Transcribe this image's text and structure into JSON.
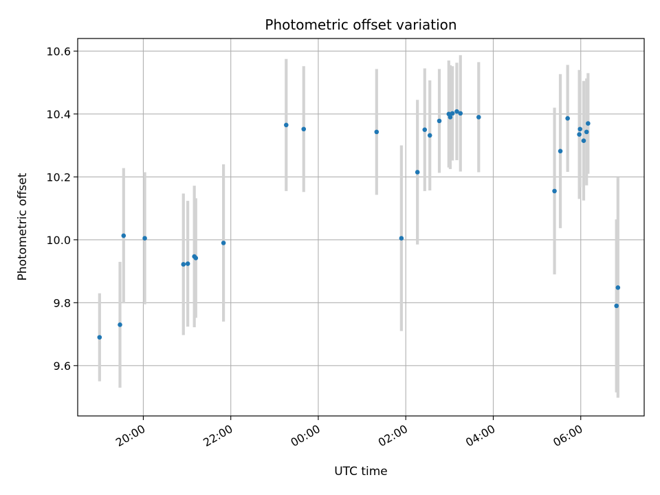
{
  "chart_data": {
    "type": "scatter",
    "title": "Photometric offset variation",
    "xlabel": "UTC time",
    "ylabel": "Photometric offset",
    "x_tick_labels": [
      "20:00",
      "22:00",
      "00:00",
      "02:00",
      "04:00",
      "06:00"
    ],
    "x_ticks_hours": [
      20,
      22,
      24,
      26,
      28,
      30
    ],
    "y_ticks": [
      9.6,
      9.8,
      10.0,
      10.2,
      10.4,
      10.6
    ],
    "xlim_hours": [
      18.5,
      31.45
    ],
    "ylim": [
      9.44,
      10.64
    ],
    "grid": true,
    "marker_color": "#1f77b4",
    "errorbar_color": "#d3d3d3",
    "points": [
      {
        "t": "19:00",
        "y": 9.69,
        "err": 0.14
      },
      {
        "t": "19:28",
        "y": 9.73,
        "err": 0.2
      },
      {
        "t": "19:33",
        "y": 10.013,
        "err": 0.215
      },
      {
        "t": "20:02",
        "y": 10.005,
        "err": 0.21
      },
      {
        "t": "20:55",
        "y": 9.922,
        "err": 0.225
      },
      {
        "t": "21:01",
        "y": 9.924,
        "err": 0.2
      },
      {
        "t": "21:10",
        "y": 9.947,
        "err": 0.225
      },
      {
        "t": "21:12",
        "y": 9.942,
        "err": 0.19
      },
      {
        "t": "21:50",
        "y": 9.99,
        "err": 0.25
      },
      {
        "t": "23:16",
        "y": 10.365,
        "err": 0.21
      },
      {
        "t": "23:40",
        "y": 10.352,
        "err": 0.2
      },
      {
        "t": "01:20",
        "y": 10.343,
        "err": 0.2
      },
      {
        "t": "01:54",
        "y": 10.005,
        "err": 0.295
      },
      {
        "t": "02:16",
        "y": 10.215,
        "err": 0.23
      },
      {
        "t": "02:26",
        "y": 10.35,
        "err": 0.195
      },
      {
        "t": "02:33",
        "y": 10.332,
        "err": 0.175
      },
      {
        "t": "02:46",
        "y": 10.378,
        "err": 0.165
      },
      {
        "t": "02:59",
        "y": 10.4,
        "err": 0.17
      },
      {
        "t": "03:01",
        "y": 10.39,
        "err": 0.165
      },
      {
        "t": "03:04",
        "y": 10.402,
        "err": 0.15
      },
      {
        "t": "03:10",
        "y": 10.408,
        "err": 0.155
      },
      {
        "t": "03:15",
        "y": 10.402,
        "err": 0.185
      },
      {
        "t": "03:40",
        "y": 10.39,
        "err": 0.175
      },
      {
        "t": "05:24",
        "y": 10.155,
        "err": 0.265
      },
      {
        "t": "05:32",
        "y": 10.282,
        "err": 0.245
      },
      {
        "t": "05:42",
        "y": 10.386,
        "err": 0.17
      },
      {
        "t": "05:58",
        "y": 10.335,
        "err": 0.205
      },
      {
        "t": "05:59",
        "y": 10.352,
        "err": 0.185
      },
      {
        "t": "06:04",
        "y": 10.315,
        "err": 0.19
      },
      {
        "t": "06:08",
        "y": 10.343,
        "err": 0.17
      },
      {
        "t": "06:10",
        "y": 10.37,
        "err": 0.16
      },
      {
        "t": "06:49",
        "y": 9.79,
        "err": 0.275
      },
      {
        "t": "06:51",
        "y": 9.848,
        "err": 0.35
      }
    ]
  }
}
